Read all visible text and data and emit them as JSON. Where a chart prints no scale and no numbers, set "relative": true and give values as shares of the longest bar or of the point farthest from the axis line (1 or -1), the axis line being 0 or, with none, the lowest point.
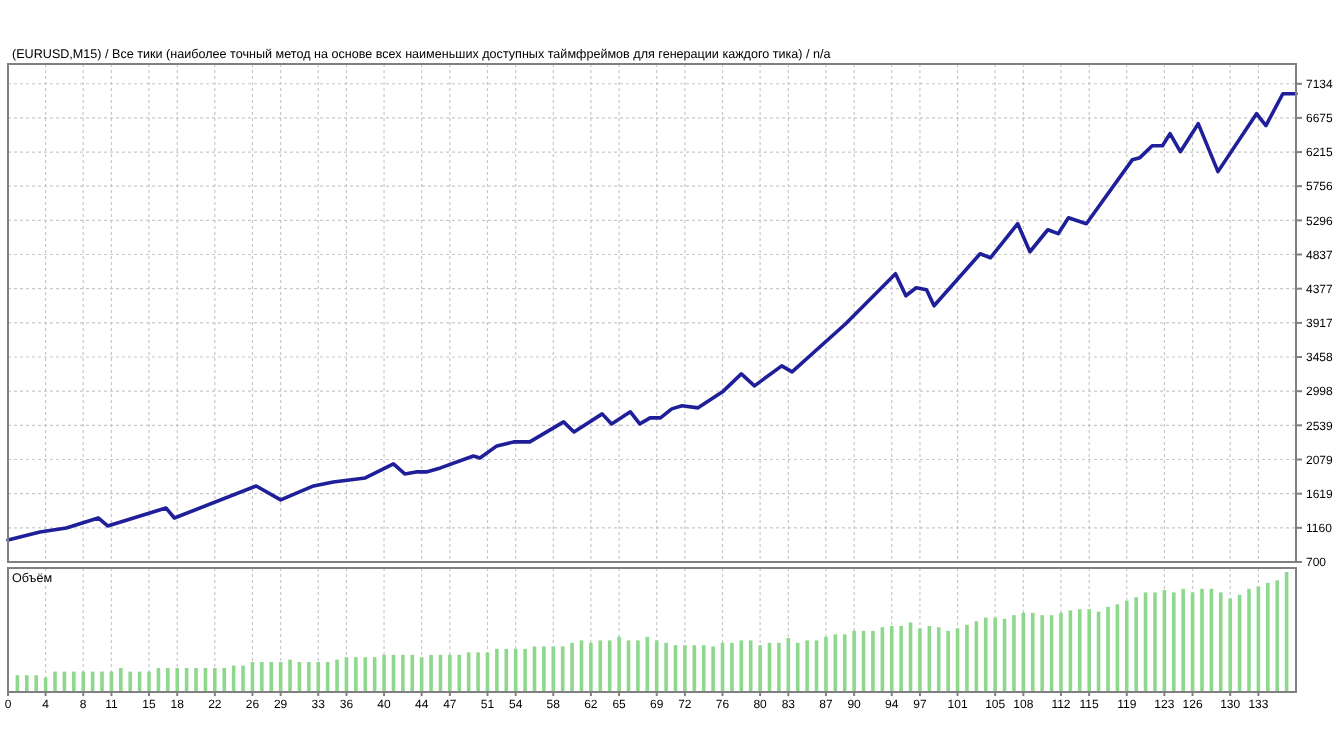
{
  "chart_data": [
    {
      "type": "line",
      "title": "(EURUSD,M15) / Все тики (наиболее точный метод на основе всех наименьших доступных таймфреймов для генерации каждого тика) / n/a",
      "color": "#1f1f99",
      "xlim": [
        0,
        137
      ],
      "xticks": [
        0,
        4,
        8,
        11,
        15,
        18,
        22,
        26,
        29,
        33,
        36,
        40,
        44,
        47,
        51,
        54,
        58,
        62,
        65,
        69,
        72,
        76,
        80,
        83,
        87,
        90,
        94,
        97,
        101,
        105,
        108,
        112,
        115,
        119,
        123,
        126,
        130,
        133
      ],
      "ylim": [
        700,
        7400
      ],
      "yticks": [
        700,
        1160,
        1619,
        2079,
        2539,
        2998,
        3458,
        3917,
        4377,
        4837,
        5296,
        5756,
        6215,
        6675,
        7134
      ],
      "grid": true,
      "tick_labels": "y",
      "x": [
        0,
        3.4,
        6.2,
        9.6,
        10.6,
        16.8,
        17.7,
        26.4,
        29,
        32.5,
        34.6,
        38,
        41,
        42.2,
        43.4,
        44.5,
        46,
        49.5,
        50.2,
        52,
        53.8,
        55.5,
        59.1,
        60.2,
        63.2,
        64.2,
        66.2,
        67.2,
        68.3,
        69.4,
        70.6,
        71.7,
        73.4,
        76,
        78,
        79.4,
        82.3,
        83.4,
        89.1,
        94.4,
        95.5,
        96.6,
        97.7,
        98.5,
        103.4,
        104.5,
        107.4,
        108.7,
        110.6,
        111.7,
        112.8,
        114.7,
        119.6,
        120.4,
        121.7,
        122.8,
        123.6,
        124.7,
        126.6,
        128.7,
        132.8,
        133.8,
        135.6,
        137
      ],
      "values": [
        996,
        1104,
        1158,
        1292,
        1185,
        1427,
        1292,
        1723,
        1535,
        1723,
        1777,
        1831,
        2020,
        1885,
        1912,
        1912,
        1966,
        2127,
        2100,
        2262,
        2316,
        2316,
        2585,
        2450,
        2693,
        2558,
        2720,
        2558,
        2639,
        2639,
        2760,
        2801,
        2774,
        2989,
        3231,
        3070,
        3339,
        3258,
        3905,
        4578,
        4282,
        4390,
        4363,
        4147,
        4847,
        4793,
        5251,
        4874,
        5170,
        5117,
        5332,
        5251,
        6113,
        6140,
        6301,
        6301,
        6463,
        6220,
        6597,
        5952,
        6732,
        6571,
        7000,
        7000
      ]
    },
    {
      "type": "bar",
      "title": "Объём",
      "color": "#8ed88e",
      "relative": true,
      "xlim": [
        0,
        137
      ],
      "xticks": [
        0,
        4,
        8,
        11,
        15,
        18,
        22,
        26,
        29,
        33,
        36,
        40,
        44,
        47,
        51,
        54,
        58,
        62,
        65,
        69,
        72,
        76,
        80,
        83,
        87,
        90,
        94,
        97,
        101,
        105,
        108,
        112,
        115,
        119,
        123,
        126,
        130,
        133
      ],
      "grid": "x",
      "tick_labels": "x",
      "x": [
        1,
        2,
        3,
        4,
        5,
        6,
        7,
        8,
        9,
        10,
        11,
        12,
        13,
        14,
        15,
        16,
        17,
        18,
        19,
        20,
        21,
        22,
        23,
        24,
        25,
        26,
        27,
        28,
        29,
        30,
        31,
        32,
        33,
        34,
        35,
        36,
        37,
        38,
        39,
        40,
        41,
        42,
        43,
        44,
        45,
        46,
        47,
        48,
        49,
        50,
        51,
        52,
        53,
        54,
        55,
        56,
        57,
        58,
        59,
        60,
        61,
        62,
        63,
        64,
        65,
        66,
        67,
        68,
        69,
        70,
        71,
        72,
        73,
        74,
        75,
        76,
        77,
        78,
        79,
        80,
        81,
        82,
        83,
        84,
        85,
        86,
        87,
        88,
        89,
        90,
        91,
        92,
        93,
        94,
        95,
        96,
        97,
        98,
        99,
        100,
        101,
        102,
        103,
        104,
        105,
        106,
        107,
        108,
        109,
        110,
        111,
        112,
        113,
        114,
        115,
        116,
        117,
        118,
        119,
        120,
        121,
        122,
        123,
        124,
        125,
        126,
        127,
        128,
        129,
        130,
        131,
        132,
        133,
        134,
        135,
        136
      ],
      "values": [
        0.14,
        0.14,
        0.14,
        0.12,
        0.17,
        0.17,
        0.17,
        0.17,
        0.17,
        0.17,
        0.17,
        0.2,
        0.17,
        0.17,
        0.17,
        0.2,
        0.2,
        0.2,
        0.2,
        0.2,
        0.2,
        0.2,
        0.2,
        0.22,
        0.22,
        0.25,
        0.25,
        0.25,
        0.25,
        0.27,
        0.25,
        0.25,
        0.25,
        0.25,
        0.27,
        0.29,
        0.29,
        0.29,
        0.29,
        0.31,
        0.31,
        0.31,
        0.31,
        0.29,
        0.31,
        0.31,
        0.31,
        0.31,
        0.33,
        0.33,
        0.33,
        0.36,
        0.36,
        0.36,
        0.36,
        0.38,
        0.38,
        0.38,
        0.38,
        0.41,
        0.43,
        0.41,
        0.43,
        0.43,
        0.46,
        0.43,
        0.43,
        0.46,
        0.43,
        0.41,
        0.39,
        0.39,
        0.39,
        0.39,
        0.38,
        0.41,
        0.41,
        0.43,
        0.43,
        0.39,
        0.41,
        0.41,
        0.45,
        0.41,
        0.43,
        0.43,
        0.46,
        0.48,
        0.48,
        0.51,
        0.51,
        0.51,
        0.54,
        0.55,
        0.55,
        0.58,
        0.53,
        0.55,
        0.54,
        0.51,
        0.53,
        0.56,
        0.59,
        0.62,
        0.62,
        0.61,
        0.64,
        0.66,
        0.66,
        0.64,
        0.64,
        0.66,
        0.68,
        0.69,
        0.69,
        0.67,
        0.71,
        0.73,
        0.76,
        0.79,
        0.83,
        0.83,
        0.85,
        0.83,
        0.86,
        0.83,
        0.86,
        0.86,
        0.83,
        0.78,
        0.81,
        0.86,
        0.88,
        0.91,
        0.93,
        1
      ]
    }
  ]
}
